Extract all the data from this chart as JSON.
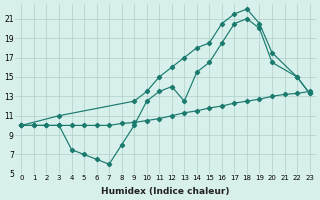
{
  "xlabel": "Humidex (Indice chaleur)",
  "bg_color": "#d8f0ec",
  "grid_color": "#b0cec8",
  "line_color": "#1a7a6e",
  "xlim": [
    -0.5,
    23.5
  ],
  "ylim": [
    5,
    22.5
  ],
  "xticks": [
    0,
    1,
    2,
    3,
    4,
    5,
    6,
    7,
    8,
    9,
    10,
    11,
    12,
    13,
    14,
    15,
    16,
    17,
    18,
    19,
    20,
    21,
    22,
    23
  ],
  "yticks": [
    5,
    7,
    9,
    11,
    13,
    15,
    17,
    19,
    21
  ],
  "line1_x": [
    0,
    1,
    2,
    3,
    4,
    5,
    6,
    7,
    8,
    9,
    10,
    11,
    12,
    13,
    14,
    15,
    16,
    17,
    18,
    19,
    20,
    21,
    22,
    23
  ],
  "line1_y": [
    10.0,
    10.0,
    10.0,
    10.0,
    10.0,
    10.0,
    10.0,
    10.0,
    10.2,
    10.3,
    10.5,
    10.7,
    11.0,
    11.3,
    11.5,
    11.8,
    12.0,
    12.3,
    12.5,
    12.7,
    13.0,
    13.2,
    13.3,
    13.5
  ],
  "line2_x": [
    0,
    1,
    2,
    3,
    4,
    5,
    6,
    7,
    8,
    9,
    10,
    11,
    12,
    13,
    14,
    15,
    16,
    17,
    18,
    19,
    20,
    22,
    23
  ],
  "line2_y": [
    10.0,
    10.0,
    10.0,
    10.0,
    7.5,
    7.0,
    6.5,
    6.0,
    8.0,
    10.0,
    12.5,
    13.5,
    14.0,
    12.5,
    15.5,
    16.5,
    18.5,
    20.5,
    21.0,
    20.0,
    16.5,
    15.0,
    13.3
  ],
  "line3_x": [
    0,
    3,
    9,
    10,
    11,
    12,
    13,
    14,
    15,
    16,
    17,
    18,
    19,
    20,
    22,
    23
  ],
  "line3_y": [
    10.0,
    11.0,
    12.5,
    13.5,
    15.0,
    16.0,
    17.0,
    18.0,
    18.5,
    20.5,
    21.5,
    22.0,
    20.5,
    17.5,
    15.0,
    13.3
  ]
}
